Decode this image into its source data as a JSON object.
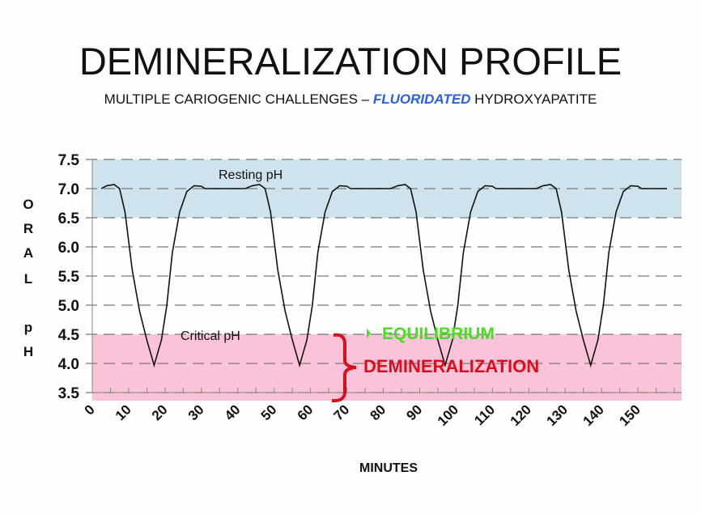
{
  "chart_data": {
    "type": "line",
    "title": "DEMINERALIZATION PROFILE",
    "subtitle": {
      "before": "MULTIPLE CARIOGENIC CHALLENGES – ",
      "highlight": "FLUORIDATED",
      "after": "  HYDROXYAPATITE",
      "highlight_color": "#2a5fe0"
    },
    "xlabel": "MINUTES",
    "ylabel": "ORAL pH",
    "ylabel_letters": [
      "O",
      "R",
      "A",
      "L",
      "",
      "p",
      "H"
    ],
    "xlim": [
      0,
      162
    ],
    "ylim": [
      3.5,
      7.5
    ],
    "x_ticks": [
      0,
      10,
      20,
      30,
      40,
      50,
      60,
      70,
      80,
      90,
      100,
      110,
      120,
      130,
      140,
      150
    ],
    "y_ticks": [
      "3.5",
      "4.0",
      "4.5",
      "5.0",
      "5.5",
      "6.0",
      "6.5",
      "7.0",
      "7.5"
    ],
    "grid": "horizontal dashed",
    "bands": [
      {
        "label": "Resting pH",
        "from": 6.5,
        "to": 7.5,
        "color": "#cfe3ef"
      },
      {
        "label": "Critical pH",
        "from": 3.5,
        "to": 4.5,
        "color": "#fac3da"
      }
    ],
    "annotations": [
      {
        "text": "EQUILIBRIUM",
        "color": "#44e01a"
      },
      {
        "text": "DEMINERALIZATION",
        "color": "#d8101c"
      }
    ],
    "series": [
      {
        "x": [
          2.5,
          4,
          6,
          7.5,
          9,
          11,
          13,
          15,
          17,
          19,
          20.5,
          22,
          24,
          26,
          28,
          30,
          31,
          42,
          44,
          46,
          47.5,
          49,
          51,
          53,
          55,
          57,
          59,
          60.5,
          62,
          64,
          66,
          68,
          70,
          71,
          82,
          84,
          86,
          87.5,
          89,
          91,
          93,
          95,
          97,
          99,
          100.5,
          102,
          104,
          106,
          108,
          110,
          111,
          122,
          124,
          126,
          127.5,
          129,
          131,
          133,
          135,
          137,
          139,
          140.5,
          142,
          144,
          146,
          148,
          150,
          151,
          158
        ],
        "y": [
          7.0,
          7.05,
          7.07,
          7.0,
          6.6,
          5.6,
          4.9,
          4.4,
          3.97,
          4.4,
          5.0,
          5.9,
          6.6,
          6.95,
          7.05,
          7.04,
          7.0,
          7.0,
          7.05,
          7.07,
          7.0,
          6.6,
          5.6,
          4.9,
          4.4,
          3.97,
          4.4,
          5.0,
          5.9,
          6.6,
          6.95,
          7.05,
          7.04,
          7.0,
          7.0,
          7.05,
          7.07,
          7.0,
          6.6,
          5.6,
          4.9,
          4.4,
          3.97,
          4.4,
          5.0,
          5.9,
          6.6,
          6.95,
          7.05,
          7.04,
          7.0,
          7.0,
          7.05,
          7.07,
          7.0,
          6.6,
          5.6,
          4.9,
          4.4,
          3.97,
          4.4,
          5.0,
          5.9,
          6.6,
          6.95,
          7.05,
          7.04,
          7.0,
          7.0
        ]
      }
    ]
  }
}
